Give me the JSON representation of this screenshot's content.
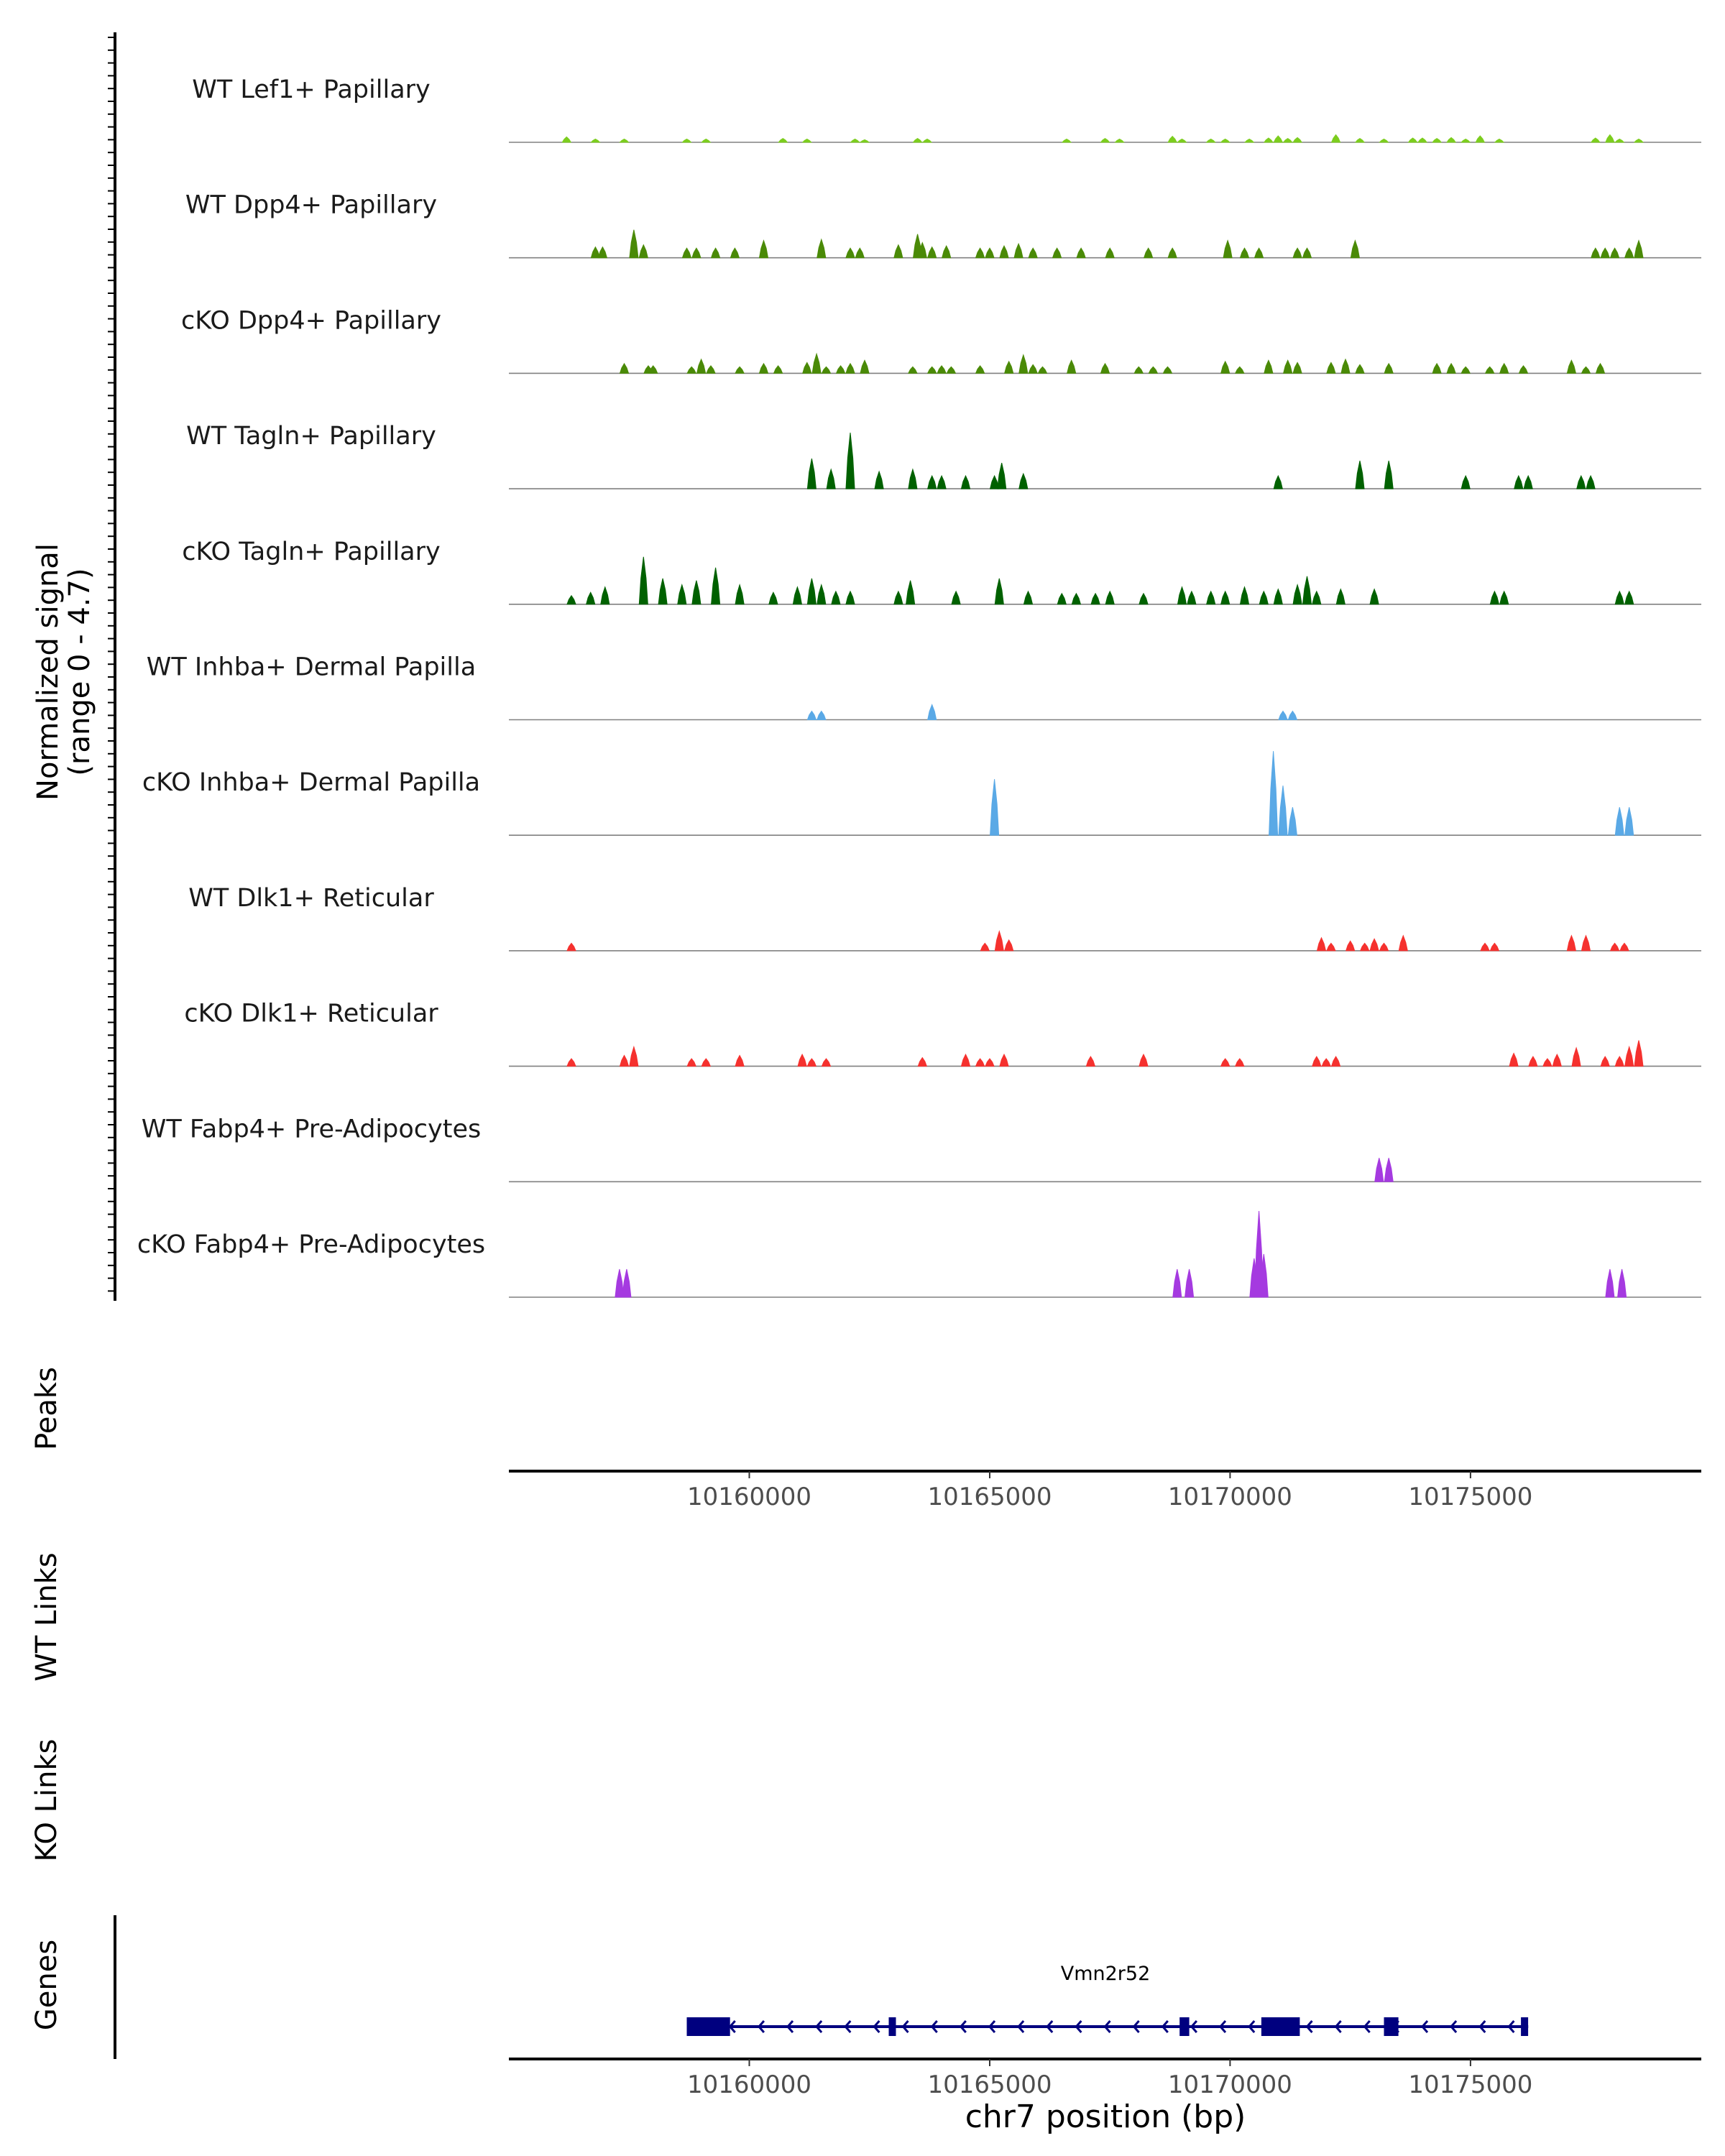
{
  "chart_data": {
    "type": "area",
    "xlabel": "chr7 position (bp)",
    "x_range": [
      10155000,
      10179800
    ],
    "x_ticks": [
      10160000,
      10165000,
      10170000,
      10175000
    ],
    "x_tick_labels": [
      "10160000",
      "10165000",
      "10170000",
      "10175000"
    ],
    "signal_axis_label": [
      "Normalized signal",
      "(range 0 - 4.7)"
    ],
    "signal_range": [
      0,
      4.7
    ],
    "track_labels": {
      "peaks": "Peaks",
      "wt_links": "WT Links",
      "ko_links": "KO Links",
      "genes": "Genes"
    },
    "series": [
      {
        "name": "WT Lef1+ Papillary",
        "color": "#7CCD1E",
        "peaks": [
          [
            10156200,
            0.25
          ],
          [
            10156800,
            0.15
          ],
          [
            10157400,
            0.15
          ],
          [
            10158700,
            0.15
          ],
          [
            10159100,
            0.15
          ],
          [
            10160700,
            0.18
          ],
          [
            10161200,
            0.15
          ],
          [
            10162200,
            0.15
          ],
          [
            10162400,
            0.12
          ],
          [
            10163500,
            0.18
          ],
          [
            10163700,
            0.15
          ],
          [
            10166600,
            0.15
          ],
          [
            10167400,
            0.18
          ],
          [
            10167700,
            0.15
          ],
          [
            10168800,
            0.28
          ],
          [
            10169000,
            0.15
          ],
          [
            10169600,
            0.15
          ],
          [
            10169900,
            0.15
          ],
          [
            10170400,
            0.15
          ],
          [
            10170800,
            0.2
          ],
          [
            10171000,
            0.3
          ],
          [
            10171200,
            0.18
          ],
          [
            10171400,
            0.22
          ],
          [
            10172200,
            0.35
          ],
          [
            10172700,
            0.18
          ],
          [
            10173200,
            0.15
          ],
          [
            10173800,
            0.2
          ],
          [
            10174000,
            0.2
          ],
          [
            10174300,
            0.18
          ],
          [
            10174600,
            0.22
          ],
          [
            10174900,
            0.15
          ],
          [
            10175200,
            0.3
          ],
          [
            10175600,
            0.15
          ],
          [
            10177600,
            0.2
          ],
          [
            10177900,
            0.35
          ],
          [
            10178100,
            0.15
          ],
          [
            10178500,
            0.15
          ]
        ]
      },
      {
        "name": "WT Dpp4+ Papillary",
        "color": "#4A8A07",
        "peaks": [
          [
            10156800,
            0.5
          ],
          [
            10156950,
            0.5
          ],
          [
            10157600,
            1.3
          ],
          [
            10157800,
            0.6
          ],
          [
            10158700,
            0.45
          ],
          [
            10158900,
            0.45
          ],
          [
            10159300,
            0.45
          ],
          [
            10159700,
            0.45
          ],
          [
            10160300,
            0.8
          ],
          [
            10161500,
            0.85
          ],
          [
            10162100,
            0.45
          ],
          [
            10162300,
            0.45
          ],
          [
            10163100,
            0.6
          ],
          [
            10163500,
            1.1
          ],
          [
            10163600,
            0.7
          ],
          [
            10163800,
            0.5
          ],
          [
            10164100,
            0.55
          ],
          [
            10164800,
            0.45
          ],
          [
            10165000,
            0.45
          ],
          [
            10165300,
            0.55
          ],
          [
            10165600,
            0.65
          ],
          [
            10165900,
            0.45
          ],
          [
            10166400,
            0.45
          ],
          [
            10166900,
            0.45
          ],
          [
            10167500,
            0.45
          ],
          [
            10168300,
            0.45
          ],
          [
            10168800,
            0.45
          ],
          [
            10169950,
            0.8
          ],
          [
            10170300,
            0.45
          ],
          [
            10170600,
            0.45
          ],
          [
            10171400,
            0.45
          ],
          [
            10171600,
            0.45
          ],
          [
            10172600,
            0.8
          ],
          [
            10177600,
            0.45
          ],
          [
            10177800,
            0.45
          ],
          [
            10178000,
            0.45
          ],
          [
            10178300,
            0.45
          ],
          [
            10178500,
            0.8
          ]
        ]
      },
      {
        "name": "cKO Dpp4+ Papillary",
        "color": "#4A8A07",
        "peaks": [
          [
            10157400,
            0.45
          ],
          [
            10157900,
            0.35
          ],
          [
            10158000,
            0.35
          ],
          [
            10158800,
            0.3
          ],
          [
            10159000,
            0.65
          ],
          [
            10159200,
            0.35
          ],
          [
            10159800,
            0.3
          ],
          [
            10160300,
            0.45
          ],
          [
            10160600,
            0.35
          ],
          [
            10161200,
            0.5
          ],
          [
            10161400,
            0.9
          ],
          [
            10161600,
            0.3
          ],
          [
            10161900,
            0.35
          ],
          [
            10162100,
            0.45
          ],
          [
            10162400,
            0.6
          ],
          [
            10163400,
            0.3
          ],
          [
            10163800,
            0.3
          ],
          [
            10164000,
            0.35
          ],
          [
            10164200,
            0.3
          ],
          [
            10164800,
            0.35
          ],
          [
            10165400,
            0.55
          ],
          [
            10165700,
            0.85
          ],
          [
            10165900,
            0.4
          ],
          [
            10166100,
            0.3
          ],
          [
            10166700,
            0.6
          ],
          [
            10167400,
            0.45
          ],
          [
            10168100,
            0.3
          ],
          [
            10168400,
            0.3
          ],
          [
            10168700,
            0.3
          ],
          [
            10169900,
            0.55
          ],
          [
            10170200,
            0.3
          ],
          [
            10170800,
            0.6
          ],
          [
            10171200,
            0.6
          ],
          [
            10171400,
            0.5
          ],
          [
            10172100,
            0.5
          ],
          [
            10172400,
            0.65
          ],
          [
            10172700,
            0.4
          ],
          [
            10173300,
            0.45
          ],
          [
            10174300,
            0.45
          ],
          [
            10174600,
            0.45
          ],
          [
            10174900,
            0.3
          ],
          [
            10175400,
            0.3
          ],
          [
            10175700,
            0.45
          ],
          [
            10176100,
            0.35
          ],
          [
            10177100,
            0.6
          ],
          [
            10177400,
            0.3
          ],
          [
            10177700,
            0.45
          ]
        ]
      },
      {
        "name": "WT Tagln+ Papillary",
        "color": "#006100",
        "peaks": [
          [
            10161300,
            1.4
          ],
          [
            10161700,
            0.9
          ],
          [
            10162100,
            2.6
          ],
          [
            10162700,
            0.8
          ],
          [
            10163400,
            0.9
          ],
          [
            10163800,
            0.6
          ],
          [
            10164000,
            0.6
          ],
          [
            10164500,
            0.6
          ],
          [
            10165100,
            0.6
          ],
          [
            10165250,
            1.2
          ],
          [
            10165700,
            0.7
          ],
          [
            10171000,
            0.6
          ],
          [
            10172700,
            1.3
          ],
          [
            10173300,
            1.3
          ],
          [
            10174900,
            0.6
          ],
          [
            10176000,
            0.6
          ],
          [
            10176200,
            0.6
          ],
          [
            10177300,
            0.6
          ],
          [
            10177500,
            0.6
          ]
        ]
      },
      {
        "name": "cKO Tagln+ Papillary",
        "color": "#006100",
        "peaks": [
          [
            10156300,
            0.4
          ],
          [
            10156700,
            0.55
          ],
          [
            10157000,
            0.8
          ],
          [
            10157800,
            2.2
          ],
          [
            10158200,
            1.2
          ],
          [
            10158600,
            0.9
          ],
          [
            10158900,
            1.1
          ],
          [
            10159300,
            1.7
          ],
          [
            10159800,
            0.9
          ],
          [
            10160500,
            0.55
          ],
          [
            10161000,
            0.8
          ],
          [
            10161300,
            1.2
          ],
          [
            10161500,
            0.9
          ],
          [
            10161800,
            0.6
          ],
          [
            10162100,
            0.6
          ],
          [
            10163100,
            0.6
          ],
          [
            10163350,
            1.1
          ],
          [
            10164300,
            0.6
          ],
          [
            10165200,
            1.2
          ],
          [
            10165800,
            0.6
          ],
          [
            10166500,
            0.5
          ],
          [
            10166800,
            0.5
          ],
          [
            10167200,
            0.5
          ],
          [
            10167500,
            0.6
          ],
          [
            10168200,
            0.5
          ],
          [
            10169000,
            0.8
          ],
          [
            10169200,
            0.6
          ],
          [
            10169600,
            0.6
          ],
          [
            10169900,
            0.6
          ],
          [
            10170300,
            0.8
          ],
          [
            10170700,
            0.6
          ],
          [
            10171000,
            0.7
          ],
          [
            10171400,
            0.9
          ],
          [
            10171600,
            1.3
          ],
          [
            10171800,
            0.6
          ],
          [
            10172300,
            0.7
          ],
          [
            10173000,
            0.7
          ],
          [
            10175500,
            0.6
          ],
          [
            10175700,
            0.6
          ],
          [
            10178100,
            0.6
          ],
          [
            10178300,
            0.6
          ]
        ]
      },
      {
        "name": "WT Inhba+ Dermal Papilla",
        "color": "#5AA9E6",
        "peaks": [
          [
            10161300,
            0.4
          ],
          [
            10161500,
            0.4
          ],
          [
            10163800,
            0.7
          ],
          [
            10171100,
            0.4
          ],
          [
            10171300,
            0.4
          ]
        ]
      },
      {
        "name": "cKO Inhba+ Dermal Papilla",
        "color": "#5AA9E6",
        "peaks": [
          [
            10165100,
            2.6
          ],
          [
            10170900,
            3.9
          ],
          [
            10171100,
            2.3
          ],
          [
            10171300,
            1.3
          ],
          [
            10178100,
            1.3
          ],
          [
            10178300,
            1.3
          ]
        ]
      },
      {
        "name": "WT Dlk1+ Reticular",
        "color": "#F5312E",
        "peaks": [
          [
            10156300,
            0.35
          ],
          [
            10164900,
            0.35
          ],
          [
            10165200,
            0.9
          ],
          [
            10165400,
            0.5
          ],
          [
            10171900,
            0.6
          ],
          [
            10172100,
            0.35
          ],
          [
            10172500,
            0.45
          ],
          [
            10172800,
            0.35
          ],
          [
            10173000,
            0.55
          ],
          [
            10173200,
            0.35
          ],
          [
            10173600,
            0.7
          ],
          [
            10175300,
            0.35
          ],
          [
            10175500,
            0.35
          ],
          [
            10177100,
            0.7
          ],
          [
            10177400,
            0.7
          ],
          [
            10178000,
            0.35
          ],
          [
            10178200,
            0.35
          ]
        ]
      },
      {
        "name": "cKO Dlk1+ Reticular",
        "color": "#F5312E",
        "peaks": [
          [
            10156300,
            0.35
          ],
          [
            10157400,
            0.5
          ],
          [
            10157600,
            0.9
          ],
          [
            10158800,
            0.35
          ],
          [
            10159100,
            0.35
          ],
          [
            10159800,
            0.5
          ],
          [
            10161100,
            0.55
          ],
          [
            10161300,
            0.35
          ],
          [
            10161600,
            0.35
          ],
          [
            10163600,
            0.4
          ],
          [
            10164500,
            0.55
          ],
          [
            10164800,
            0.35
          ],
          [
            10165000,
            0.35
          ],
          [
            10165300,
            0.55
          ],
          [
            10167100,
            0.45
          ],
          [
            10168200,
            0.55
          ],
          [
            10169900,
            0.35
          ],
          [
            10170200,
            0.35
          ],
          [
            10171800,
            0.45
          ],
          [
            10172000,
            0.35
          ],
          [
            10172200,
            0.45
          ],
          [
            10175900,
            0.6
          ],
          [
            10176300,
            0.45
          ],
          [
            10176600,
            0.35
          ],
          [
            10176800,
            0.55
          ],
          [
            10177200,
            0.85
          ],
          [
            10177800,
            0.45
          ],
          [
            10178100,
            0.45
          ],
          [
            10178300,
            0.9
          ],
          [
            10178500,
            1.2
          ]
        ]
      },
      {
        "name": "WT Fabp4+ Pre-Adipocytes",
        "color": "#A53AE0",
        "peaks": [
          [
            10173100,
            1.1
          ],
          [
            10173300,
            1.1
          ]
        ]
      },
      {
        "name": "cKO Fabp4+ Pre-Adipocytes",
        "color": "#A53AE0",
        "peaks": [
          [
            10157300,
            1.3
          ],
          [
            10157450,
            1.3
          ],
          [
            10168900,
            1.3
          ],
          [
            10169150,
            1.3
          ],
          [
            10170500,
            1.8
          ],
          [
            10170600,
            4.0
          ],
          [
            10170700,
            2.0
          ],
          [
            10177900,
            1.3
          ],
          [
            10178150,
            1.3
          ]
        ]
      }
    ],
    "gene": {
      "name": "Vmn2r52",
      "color": "#00007F",
      "start": 10158700,
      "end": 10176200,
      "strand": "-",
      "exons": [
        [
          10158700,
          10159600
        ],
        [
          10162900,
          10163000
        ],
        [
          10168950,
          10169150
        ],
        [
          10170650,
          10171450
        ],
        [
          10173200,
          10173500
        ],
        [
          10176050,
          10176200
        ]
      ]
    }
  }
}
